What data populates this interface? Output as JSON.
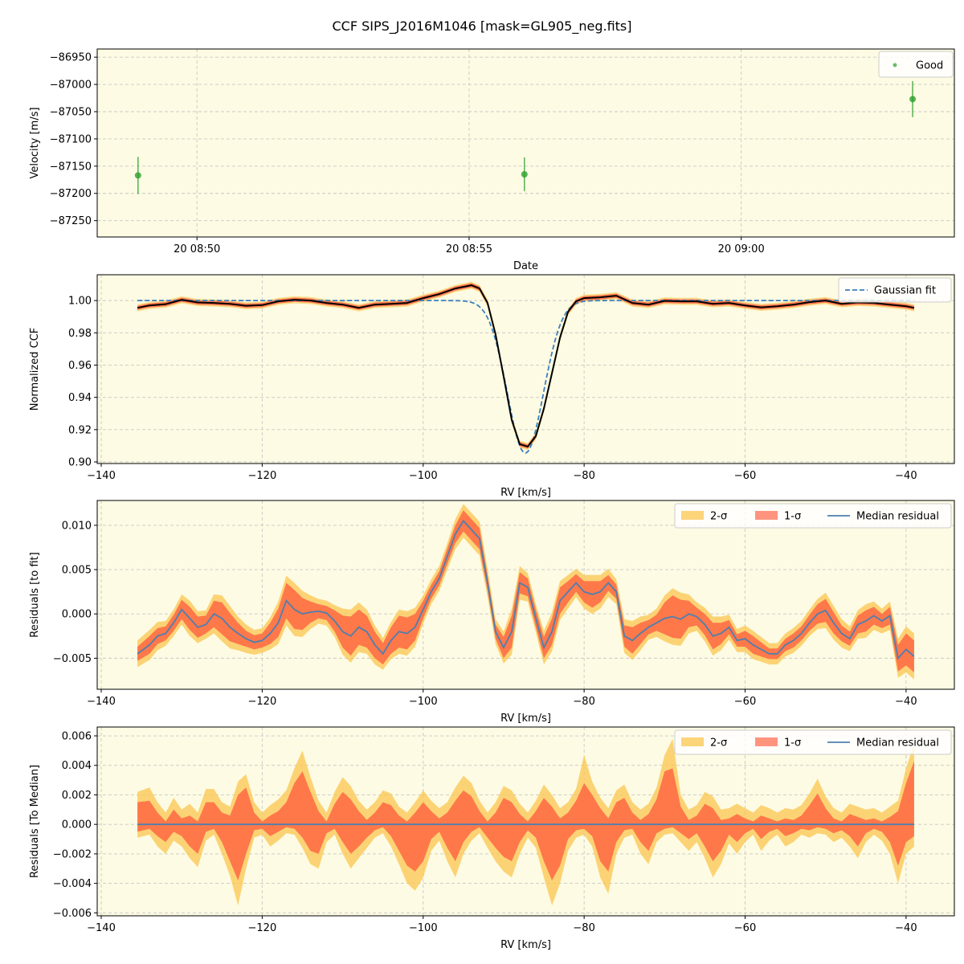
{
  "figure": {
    "title": "CCF SIPS_J2016M1046 [mask=GL905_neg.fits]",
    "background": "#fdfbe3",
    "colors": {
      "good": "#2ca02c",
      "gaussian": "#3a80c0",
      "ccf": "#000000",
      "band2": "#fbc64f",
      "band1": "#ff5a3c",
      "median": "#4d7fb0",
      "grid": "#c8c8c8"
    }
  },
  "chart_data": [
    {
      "type": "scatter",
      "xlabel": "Date",
      "ylabel": "Velocity [m/s]",
      "x_tick_labels": [
        "20 08:50",
        "20 08:55",
        "20 09:00"
      ],
      "y_ticks": [
        -86950,
        -87000,
        -87050,
        -87100,
        -87150,
        -87200,
        -87250
      ],
      "ylim": [
        -87280,
        -86935
      ],
      "legend": [
        "Good"
      ],
      "legend_position": "top-right",
      "series": [
        {
          "name": "Good",
          "points": [
            {
              "time": "20 08:48:55",
              "y": -87167,
              "err": 34
            },
            {
              "time": "20 08:56:01",
              "y": -87165,
              "err": 31
            },
            {
              "time": "20 09:03:09",
              "y": -87027,
              "err": 33
            }
          ]
        }
      ]
    },
    {
      "type": "line",
      "xlabel": "RV [km/s]",
      "ylabel": "Normalized CCF",
      "x_ticks": [
        -140,
        -120,
        -100,
        -80,
        -60,
        -40
      ],
      "y_ticks": [
        0.9,
        0.92,
        0.94,
        0.96,
        0.98,
        1.0
      ],
      "xlim": [
        -140.5,
        -34
      ],
      "ylim": [
        0.899,
        1.016
      ],
      "legend": [
        "Gaussian fit"
      ],
      "legend_position": "top-right",
      "x": [
        -135.5,
        -134,
        -132,
        -130,
        -128,
        -126,
        -124,
        -122,
        -120,
        -118,
        -116,
        -114,
        -112,
        -110,
        -108,
        -106,
        -104,
        -102,
        -100,
        -98,
        -96,
        -94,
        -93,
        -92,
        -91,
        -90,
        -89,
        -88,
        -87,
        -86,
        -85,
        -84,
        -83,
        -82,
        -81,
        -80,
        -78,
        -76,
        -74,
        -72,
        -70,
        -68,
        -66,
        -64,
        -62,
        -60,
        -58,
        -56,
        -54,
        -52,
        -50,
        -48,
        -46,
        -44,
        -42,
        -40,
        -39
      ],
      "ccf": [
        0.9955,
        0.997,
        0.9978,
        1.0005,
        0.9988,
        0.9985,
        0.998,
        0.9968,
        0.9972,
        0.9995,
        1.0005,
        1.0,
        0.9985,
        0.9975,
        0.9955,
        0.9975,
        0.998,
        0.9985,
        1.0015,
        1.004,
        1.0075,
        1.0095,
        1.0075,
        0.9985,
        0.979,
        0.953,
        0.926,
        0.911,
        0.9095,
        0.916,
        0.933,
        0.955,
        0.977,
        0.993,
        0.9995,
        1.0015,
        1.002,
        1.003,
        0.9985,
        0.9975,
        0.9998,
        0.9995,
        0.9995,
        0.998,
        0.9985,
        0.997,
        0.9958,
        0.9965,
        0.9975,
        0.999,
        1.0,
        0.998,
        0.9988,
        0.9985,
        0.9975,
        0.9965,
        0.9955
      ],
      "gaussian_fit": {
        "mu": -87.3,
        "sigma": 2.25,
        "depth": 0.0945,
        "continuum": 1.0
      }
    },
    {
      "type": "area",
      "xlabel": "RV [km/s]",
      "ylabel": "Residuals [to fit]",
      "x_ticks": [
        -140,
        -120,
        -100,
        -80,
        -60,
        -40
      ],
      "y_ticks": [
        -0.005,
        0.0,
        0.005,
        0.01
      ],
      "xlim": [
        -140.5,
        -34
      ],
      "ylim": [
        -0.0085,
        0.0128
      ],
      "legend": [
        "2-σ",
        "1-σ",
        "Median residual"
      ],
      "legend_position": "top-right",
      "x": [
        -135.5,
        -134,
        -133,
        -132,
        -131,
        -130,
        -129,
        -128,
        -127,
        -126,
        -125,
        -124,
        -123,
        -122,
        -121,
        -120,
        -119,
        -118,
        -117,
        -116,
        -115,
        -114,
        -113,
        -112,
        -111,
        -110,
        -109,
        -108,
        -107,
        -106,
        -105,
        -104,
        -103,
        -102,
        -101,
        -100,
        -99,
        -98,
        -97,
        -96,
        -95,
        -94,
        -93,
        -92,
        -91,
        -90,
        -89,
        -88,
        -87,
        -86,
        -85,
        -84,
        -83,
        -82,
        -81,
        -80,
        -79,
        -78,
        -77,
        -76,
        -75,
        -74,
        -73,
        -72,
        -71,
        -70,
        -69,
        -68,
        -67,
        -66,
        -65,
        -64,
        -63,
        -62,
        -61,
        -60,
        -59,
        -58,
        -57,
        -56,
        -55,
        -54,
        -53,
        -52,
        -51,
        -50,
        -49,
        -48,
        -47,
        -46,
        -45,
        -44,
        -43,
        -42,
        -41,
        -40,
        -39
      ],
      "median": [
        -0.0045,
        -0.0035,
        -0.0025,
        -0.0022,
        -0.001,
        0.0005,
        -0.0005,
        -0.0015,
        -0.0012,
        0.0,
        -0.0005,
        -0.0015,
        -0.0022,
        -0.0028,
        -0.0032,
        -0.003,
        -0.0022,
        -0.001,
        0.0015,
        0.0005,
        0.0,
        0.0002,
        0.0003,
        0.0001,
        -0.0008,
        -0.002,
        -0.0025,
        -0.0015,
        -0.002,
        -0.0035,
        -0.0045,
        -0.003,
        -0.002,
        -0.0022,
        -0.0015,
        0.0005,
        0.0025,
        0.004,
        0.0065,
        0.009,
        0.0105,
        0.0095,
        0.0085,
        0.0035,
        -0.002,
        -0.0038,
        -0.002,
        0.0035,
        0.003,
        -0.0005,
        -0.0038,
        -0.002,
        0.0015,
        0.0025,
        0.0035,
        0.0025,
        0.0022,
        0.0025,
        0.0035,
        0.0025,
        -0.0025,
        -0.003,
        -0.0022,
        -0.0015,
        -0.001,
        -0.0005,
        -0.0003,
        -0.0006,
        0.0,
        -0.0003,
        -0.0012,
        -0.0025,
        -0.0022,
        -0.0015,
        -0.003,
        -0.0028,
        -0.0035,
        -0.004,
        -0.0045,
        -0.0045,
        -0.0035,
        -0.003,
        -0.0022,
        -0.001,
        0.0,
        0.0004,
        -0.001,
        -0.0022,
        -0.0028,
        -0.0012,
        -0.0008,
        -0.0002,
        -0.0008,
        -0.0002,
        -0.005,
        -0.004,
        -0.0048
      ],
      "sigma1": [
        0.0008,
        0.001,
        0.0009,
        0.0008,
        0.0009,
        0.0011,
        0.0013,
        0.0012,
        0.001,
        0.0015,
        0.0018,
        0.0016,
        0.0012,
        0.0009,
        0.0008,
        0.0008,
        0.0012,
        0.0016,
        0.002,
        0.0022,
        0.0018,
        0.0012,
        0.0008,
        0.0008,
        0.0012,
        0.0018,
        0.0022,
        0.002,
        0.0018,
        0.0015,
        0.0012,
        0.0015,
        0.0018,
        0.0018,
        0.0015,
        0.001,
        0.0008,
        0.0008,
        0.0009,
        0.001,
        0.0012,
        0.0012,
        0.0012,
        0.0009,
        0.0008,
        0.0012,
        0.0018,
        0.0012,
        0.001,
        0.001,
        0.0012,
        0.0015,
        0.0015,
        0.0012,
        0.001,
        0.0012,
        0.0015,
        0.0012,
        0.0009,
        0.0008,
        0.0012,
        0.0015,
        0.0012,
        0.0008,
        0.0009,
        0.0018,
        0.0024,
        0.0022,
        0.0015,
        0.001,
        0.0012,
        0.0015,
        0.0012,
        0.0008,
        0.0007,
        0.0009,
        0.001,
        0.0008,
        0.0006,
        0.0006,
        0.0007,
        0.0008,
        0.0008,
        0.0009,
        0.0011,
        0.0013,
        0.0012,
        0.0009,
        0.0008,
        0.001,
        0.0012,
        0.001,
        0.0008,
        0.001,
        0.0015,
        0.0018,
        0.0018
      ],
      "sigma2": [
        0.0015,
        0.0017,
        0.0016,
        0.0014,
        0.0015,
        0.0017,
        0.002,
        0.0018,
        0.0016,
        0.0022,
        0.0026,
        0.0024,
        0.0019,
        0.0016,
        0.0014,
        0.0014,
        0.0018,
        0.0024,
        0.0028,
        0.003,
        0.0026,
        0.0019,
        0.0014,
        0.0014,
        0.0018,
        0.0026,
        0.003,
        0.0028,
        0.0025,
        0.0022,
        0.0018,
        0.0021,
        0.0025,
        0.0025,
        0.0022,
        0.0016,
        0.0014,
        0.0014,
        0.0015,
        0.0017,
        0.0019,
        0.0019,
        0.0019,
        0.0016,
        0.0014,
        0.0018,
        0.0026,
        0.0019,
        0.0016,
        0.0016,
        0.0019,
        0.0022,
        0.0022,
        0.0019,
        0.0016,
        0.0019,
        0.0022,
        0.0019,
        0.0016,
        0.0014,
        0.0019,
        0.0022,
        0.0019,
        0.0014,
        0.0016,
        0.0026,
        0.0032,
        0.003,
        0.0022,
        0.0016,
        0.0019,
        0.0022,
        0.0019,
        0.0014,
        0.0013,
        0.0015,
        0.0016,
        0.0014,
        0.0012,
        0.0012,
        0.0013,
        0.0014,
        0.0014,
        0.0015,
        0.0017,
        0.002,
        0.0019,
        0.0016,
        0.0014,
        0.0016,
        0.0019,
        0.0016,
        0.0014,
        0.0016,
        0.0022,
        0.0026,
        0.0026
      ]
    },
    {
      "type": "area",
      "xlabel": "RV [km/s]",
      "ylabel": "Residuals [To Median]",
      "x_ticks": [
        -140,
        -120,
        -100,
        -80,
        -60,
        -40
      ],
      "y_ticks": [
        -0.006,
        -0.004,
        -0.002,
        0.0,
        0.002,
        0.004,
        0.006
      ],
      "xlim": [
        -140.5,
        -34
      ],
      "ylim": [
        -0.0062,
        0.0066
      ],
      "legend": [
        "2-σ",
        "1-σ",
        "Median residual"
      ],
      "legend_position": "top-right",
      "x": [
        -135.5,
        -134,
        -133,
        -132,
        -131,
        -130,
        -129,
        -128,
        -127,
        -126,
        -125,
        -124,
        -123,
        -122,
        -121,
        -120,
        -119,
        -118,
        -117,
        -116,
        -115,
        -114,
        -113,
        -112,
        -111,
        -110,
        -109,
        -108,
        -107,
        -106,
        -105,
        -104,
        -103,
        -102,
        -101,
        -100,
        -99,
        -98,
        -97,
        -96,
        -95,
        -94,
        -93,
        -92,
        -91,
        -90,
        -89,
        -88,
        -87,
        -86,
        -85,
        -84,
        -83,
        -82,
        -81,
        -80,
        -79,
        -78,
        -77,
        -76,
        -75,
        -74,
        -73,
        -72,
        -71,
        -70,
        -69,
        -68,
        -67,
        -66,
        -65,
        -64,
        -63,
        -62,
        -61,
        -60,
        -59,
        -58,
        -57,
        -56,
        -55,
        -54,
        -53,
        -52,
        -51,
        -50,
        -49,
        -48,
        -47,
        -46,
        -45,
        -44,
        -43,
        -42,
        -41,
        -40,
        -39
      ],
      "upper1": [
        0.0015,
        0.0016,
        0.0008,
        0.0002,
        0.001,
        0.0004,
        0.0006,
        0.0002,
        0.0015,
        0.0015,
        0.0008,
        0.0006,
        0.002,
        0.0025,
        0.0008,
        0.0002,
        0.0006,
        0.0009,
        0.0015,
        0.0028,
        0.0036,
        0.0022,
        0.0009,
        0.0002,
        0.0014,
        0.0022,
        0.0017,
        0.0009,
        0.0003,
        0.0008,
        0.0015,
        0.0013,
        0.0006,
        0.0002,
        0.0008,
        0.0015,
        0.0009,
        0.0004,
        0.0008,
        0.0016,
        0.0023,
        0.0019,
        0.0009,
        0.0002,
        0.0008,
        0.0018,
        0.0015,
        0.0007,
        0.0002,
        0.0009,
        0.0018,
        0.0012,
        0.0004,
        0.0008,
        0.0016,
        0.0028,
        0.002,
        0.0011,
        0.0004,
        0.0015,
        0.0018,
        0.0008,
        0.0003,
        0.0007,
        0.0017,
        0.0036,
        0.0038,
        0.0012,
        0.0003,
        0.0006,
        0.0014,
        0.0011,
        0.0003,
        0.0004,
        0.0007,
        0.0004,
        0.0002,
        0.0006,
        0.0004,
        0.0002,
        0.0004,
        0.0003,
        0.0006,
        0.0013,
        0.0021,
        0.0011,
        0.0004,
        0.0002,
        0.0007,
        0.0005,
        0.0003,
        0.0004,
        0.0002,
        0.0005,
        0.0009,
        0.0028,
        0.0043
      ],
      "lower1": [
        -0.0005,
        -0.0003,
        -0.0008,
        -0.0012,
        -0.0005,
        -0.0008,
        -0.0015,
        -0.002,
        -0.0005,
        -0.0003,
        -0.0012,
        -0.0025,
        -0.0038,
        -0.002,
        -0.0004,
        -0.0003,
        -0.0008,
        -0.0005,
        -0.0002,
        -0.0003,
        -0.0009,
        -0.0018,
        -0.002,
        -0.0006,
        -0.0003,
        -0.0012,
        -0.002,
        -0.0015,
        -0.0009,
        -0.0004,
        -0.0002,
        -0.0008,
        -0.0018,
        -0.0028,
        -0.0032,
        -0.0025,
        -0.001,
        -0.0005,
        -0.0016,
        -0.0025,
        -0.0012,
        -0.0005,
        -0.0002,
        -0.0009,
        -0.0016,
        -0.0022,
        -0.0025,
        -0.0012,
        -0.0004,
        -0.0009,
        -0.0025,
        -0.0038,
        -0.0028,
        -0.001,
        -0.0004,
        -0.0003,
        -0.0008,
        -0.0025,
        -0.0032,
        -0.0012,
        -0.0004,
        -0.0003,
        -0.0012,
        -0.0018,
        -0.0006,
        -0.0003,
        -0.0002,
        -0.0006,
        -0.001,
        -0.0006,
        -0.0015,
        -0.0025,
        -0.0018,
        -0.0007,
        -0.0012,
        -0.0006,
        -0.0003,
        -0.001,
        -0.0005,
        -0.0003,
        -0.0008,
        -0.0006,
        -0.0003,
        -0.0004,
        -0.0002,
        -0.0003,
        -0.0006,
        -0.0004,
        -0.0008,
        -0.0015,
        -0.0006,
        -0.0003,
        -0.0005,
        -0.0012,
        -0.0028,
        -0.0012,
        -0.0008
      ],
      "upper2": [
        0.0022,
        0.0025,
        0.0015,
        0.0008,
        0.0018,
        0.001,
        0.0014,
        0.0008,
        0.0024,
        0.0024,
        0.0015,
        0.0012,
        0.0029,
        0.0034,
        0.0015,
        0.0008,
        0.0013,
        0.0017,
        0.0023,
        0.0038,
        0.005,
        0.0032,
        0.0016,
        0.0008,
        0.0022,
        0.0032,
        0.0026,
        0.0016,
        0.001,
        0.0015,
        0.0023,
        0.0021,
        0.0012,
        0.0008,
        0.0015,
        0.0023,
        0.0016,
        0.0011,
        0.0015,
        0.0025,
        0.0033,
        0.0028,
        0.0016,
        0.0008,
        0.0015,
        0.0026,
        0.0023,
        0.0014,
        0.0008,
        0.0016,
        0.0027,
        0.002,
        0.0011,
        0.0015,
        0.0024,
        0.0047,
        0.0029,
        0.0018,
        0.0011,
        0.0023,
        0.0027,
        0.0015,
        0.001,
        0.0014,
        0.0025,
        0.0047,
        0.0058,
        0.002,
        0.001,
        0.0013,
        0.0022,
        0.0019,
        0.001,
        0.0011,
        0.0014,
        0.0011,
        0.0008,
        0.0013,
        0.0011,
        0.0008,
        0.0011,
        0.001,
        0.0013,
        0.0021,
        0.0031,
        0.0019,
        0.0011,
        0.0008,
        0.0014,
        0.0012,
        0.001,
        0.0011,
        0.0008,
        0.0012,
        0.0016,
        0.0038,
        0.0055
      ],
      "lower2": [
        -0.0009,
        -0.0007,
        -0.0015,
        -0.002,
        -0.0011,
        -0.0015,
        -0.0023,
        -0.0029,
        -0.0011,
        -0.0007,
        -0.002,
        -0.0035,
        -0.0055,
        -0.003,
        -0.0009,
        -0.0007,
        -0.0015,
        -0.0011,
        -0.0006,
        -0.0007,
        -0.0016,
        -0.0027,
        -0.003,
        -0.0012,
        -0.0007,
        -0.002,
        -0.003,
        -0.0023,
        -0.0016,
        -0.0009,
        -0.0006,
        -0.0015,
        -0.0027,
        -0.004,
        -0.0045,
        -0.0036,
        -0.0018,
        -0.0011,
        -0.0025,
        -0.0036,
        -0.002,
        -0.0011,
        -0.0006,
        -0.0016,
        -0.0025,
        -0.0032,
        -0.0036,
        -0.002,
        -0.0009,
        -0.0016,
        -0.0036,
        -0.0055,
        -0.004,
        -0.0018,
        -0.0009,
        -0.0007,
        -0.0015,
        -0.0036,
        -0.0047,
        -0.002,
        -0.0009,
        -0.0007,
        -0.002,
        -0.0027,
        -0.0012,
        -0.0007,
        -0.0006,
        -0.0012,
        -0.0018,
        -0.0012,
        -0.0023,
        -0.0036,
        -0.0027,
        -0.0013,
        -0.002,
        -0.0012,
        -0.0007,
        -0.0018,
        -0.0011,
        -0.0007,
        -0.0015,
        -0.0012,
        -0.0007,
        -0.0009,
        -0.0006,
        -0.0007,
        -0.0012,
        -0.0009,
        -0.0015,
        -0.0023,
        -0.0012,
        -0.0007,
        -0.0011,
        -0.002,
        -0.004,
        -0.002,
        -0.0015
      ]
    }
  ]
}
